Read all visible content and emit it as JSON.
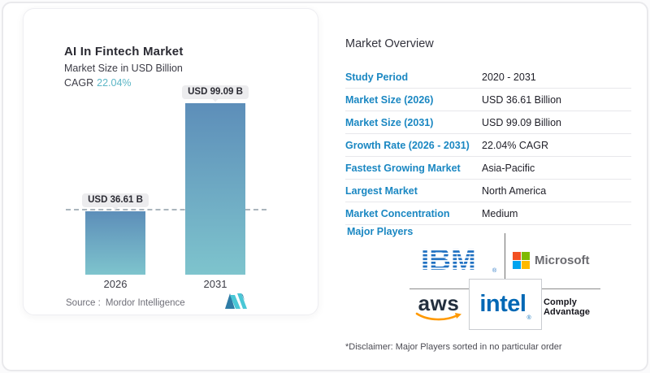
{
  "left_card": {
    "title": "AI In Fintech Market",
    "subtitle": "Market Size in USD Billion",
    "cagr_label": "CAGR",
    "cagr_value": "22.04%",
    "source_label": "Source :",
    "source_value": "Mordor Intelligence"
  },
  "chart_data": {
    "type": "bar",
    "title": "AI In Fintech Market",
    "ylabel": "Market Size in USD Billion",
    "categories": [
      "2026",
      "2031"
    ],
    "values": [
      36.61,
      99.09
    ],
    "bar_labels": [
      "USD 36.61 B",
      "USD 99.09 B"
    ],
    "unit": "USD Billion",
    "cagr_percent": 22.04,
    "reference_line_value": 36.61,
    "grid": false,
    "legend_position": "none",
    "bar_gradient_top": "#5d8eb9",
    "bar_gradient_bottom": "#7ec4cd"
  },
  "overview": {
    "heading": "Market Overview",
    "rows": [
      {
        "label": "Study Period",
        "value": "2020 - 2031"
      },
      {
        "label": "Market Size (2026)",
        "value": "USD 36.61 Billion"
      },
      {
        "label": "Market Size (2031)",
        "value": "USD 99.09 Billion"
      },
      {
        "label": "Growth Rate (2026 - 2031)",
        "value": "22.04% CAGR"
      },
      {
        "label": "Fastest Growing Market",
        "value": "Asia-Pacific"
      },
      {
        "label": "Largest Market",
        "value": "North America"
      },
      {
        "label": "Market Concentration",
        "value": "Medium"
      }
    ],
    "major_players_label": "Major Players",
    "players": {
      "ibm": {
        "text": "IBM",
        "reg": "®"
      },
      "microsoft": {
        "text": "Microsoft"
      },
      "aws": {
        "text": "aws"
      },
      "intel": {
        "text": "intel",
        "reg": "®"
      },
      "comply": {
        "line1": "Comply",
        "line2": "Advantage"
      }
    },
    "disclaimer": "*Disclaimer: Major Players sorted in no particular order"
  },
  "colors": {
    "label_blue": "#1a87c2",
    "value_dark": "#1f1f28",
    "cagr_teal": "#5cb6c6",
    "bar_top": "#5d8eb9",
    "bar_bottom": "#7ec4cd",
    "ibm_blue": "#1f70c1",
    "ms_red": "#f25022",
    "ms_green": "#7fba00",
    "ms_blue": "#00a4ef",
    "ms_yellow": "#ffb900",
    "aws_dark": "#232f3e",
    "aws_orange": "#ff9900",
    "intel_blue": "#0068b5"
  }
}
